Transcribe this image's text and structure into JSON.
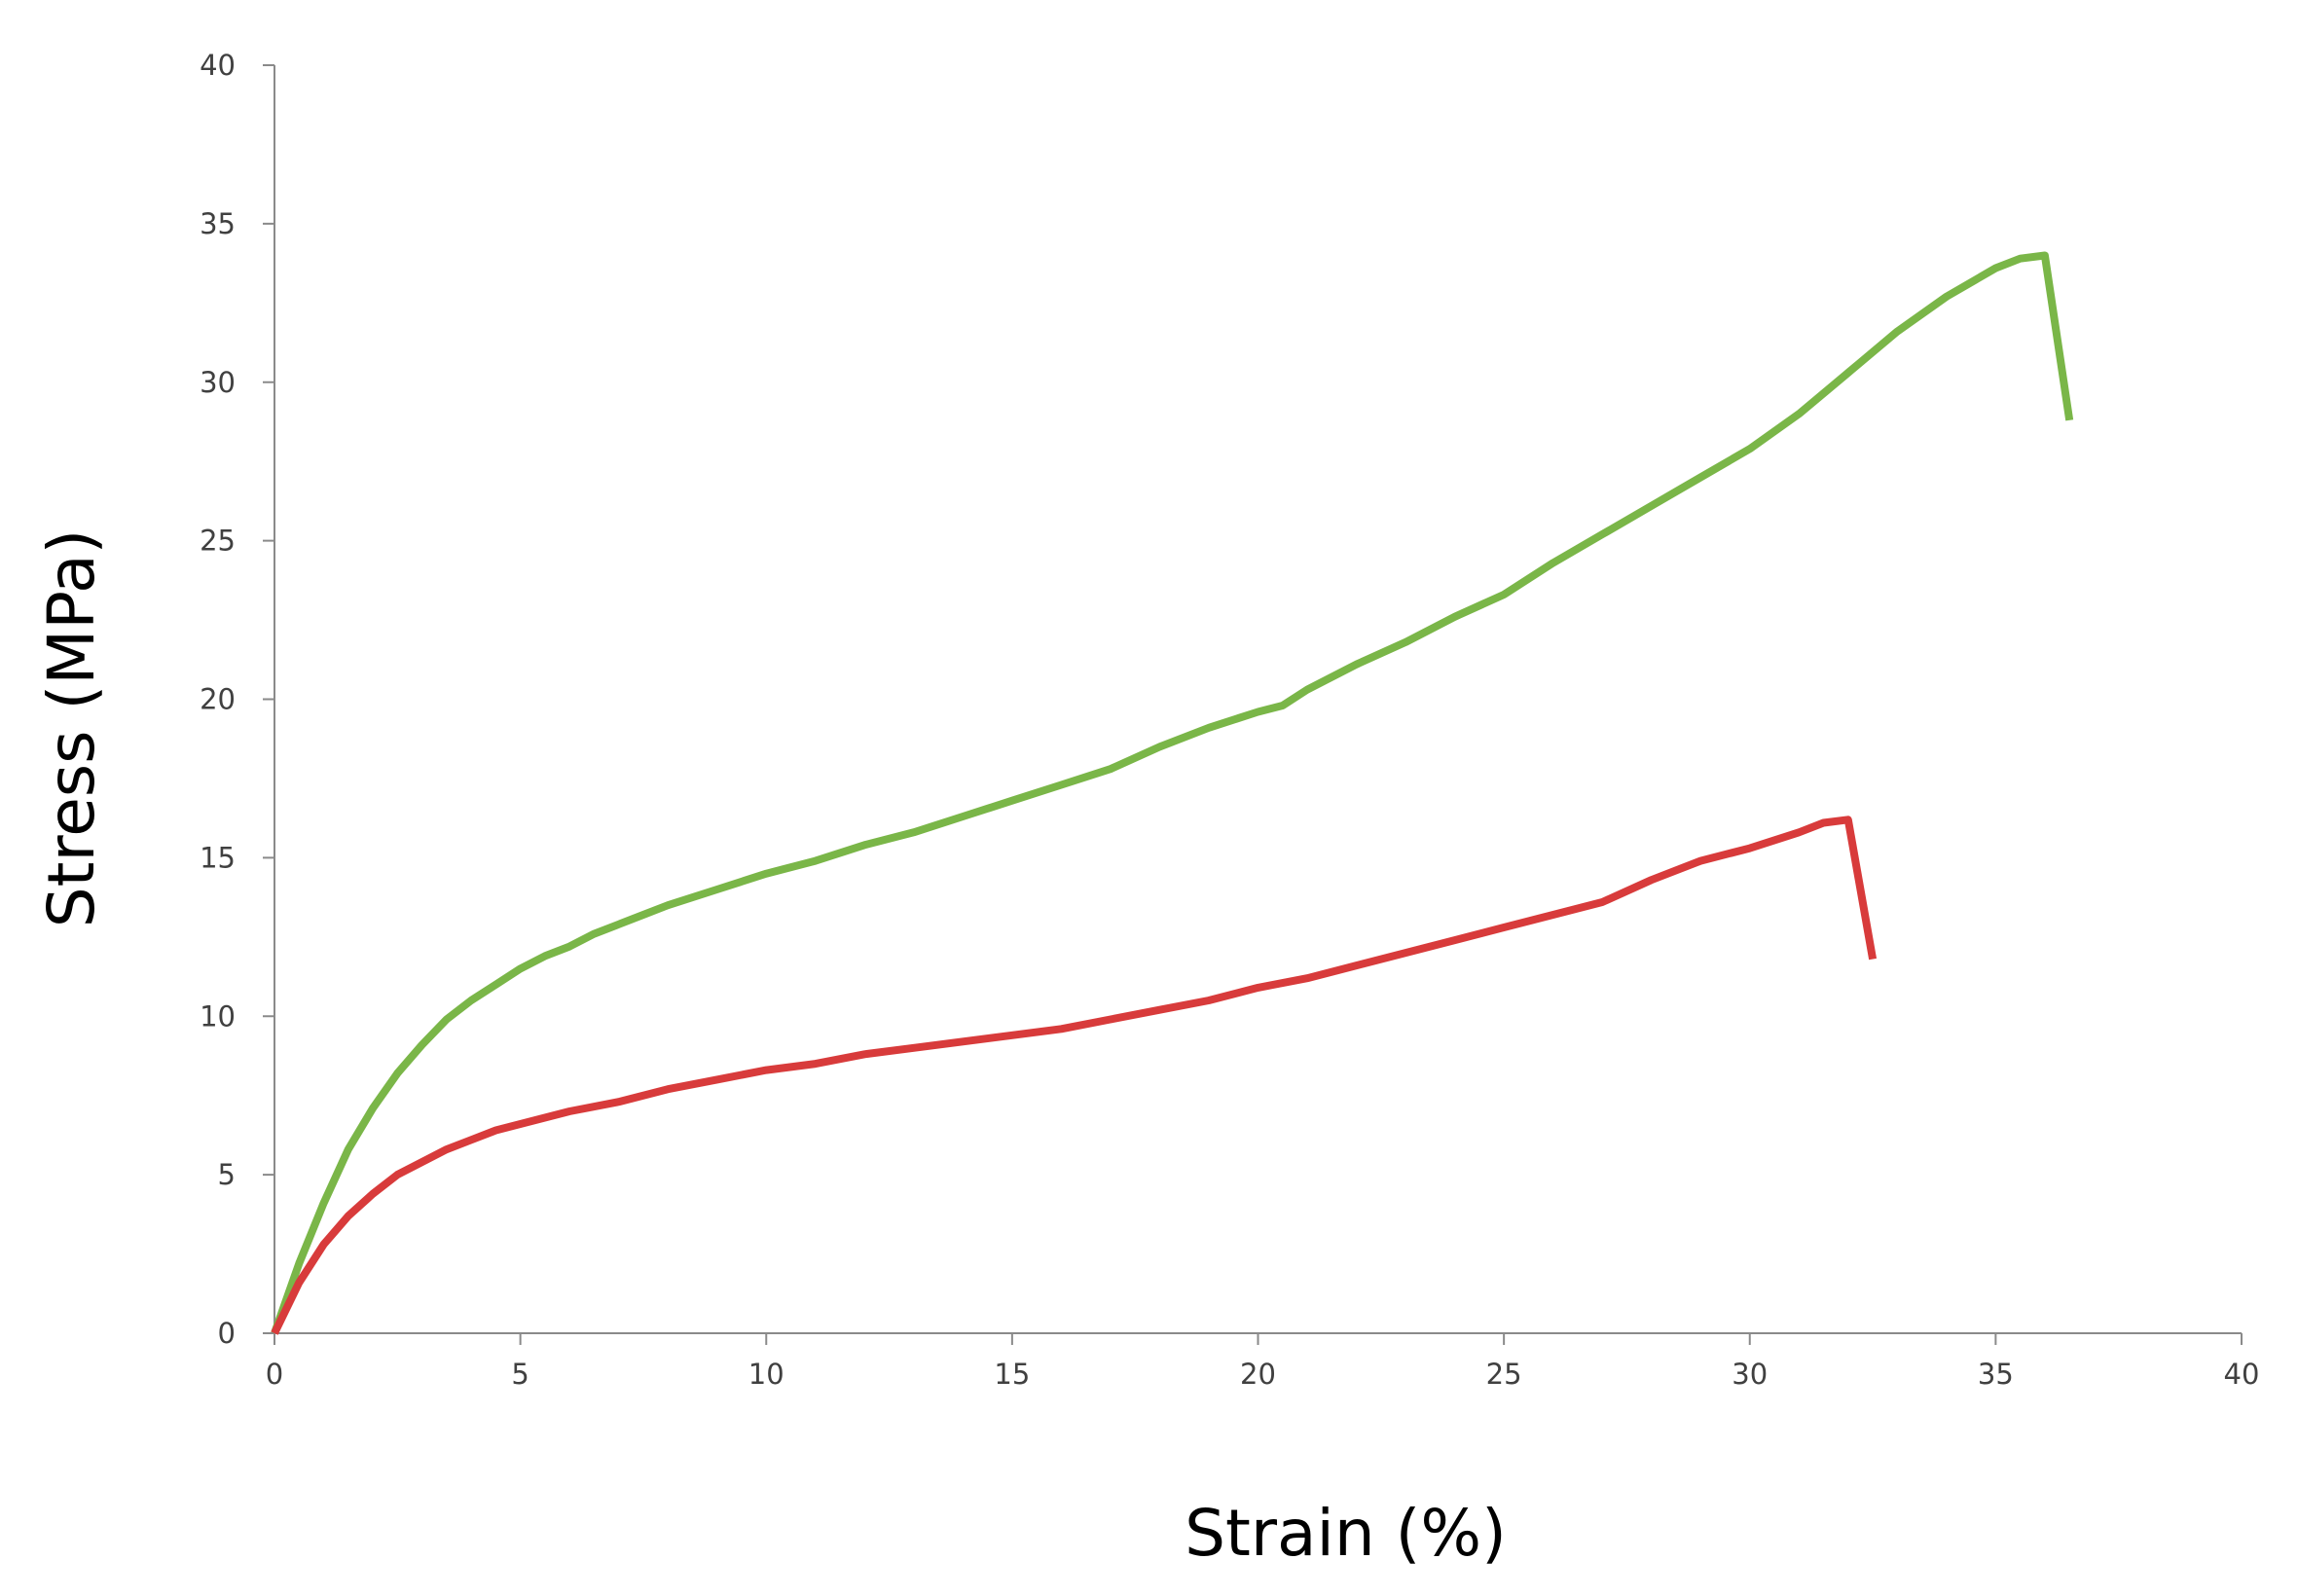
{
  "chart_data": {
    "type": "line",
    "title": "",
    "xlabel": "Strain (%)",
    "ylabel": "Stress (MPa)",
    "xlim": [
      0,
      40
    ],
    "ylim": [
      0,
      40
    ],
    "x_ticks": [
      "0",
      "5",
      "10",
      "15",
      "20",
      "25",
      "30",
      "35",
      "40"
    ],
    "y_ticks": [
      "0",
      "5",
      "10",
      "15",
      "20",
      "25",
      "30",
      "35",
      "40"
    ],
    "grid": false,
    "legend": "none",
    "series": [
      {
        "color": "#7ab648",
        "points": [
          [
            0,
            0
          ],
          [
            0.5,
            2.2
          ],
          [
            1,
            4.1
          ],
          [
            1.5,
            5.8
          ],
          [
            2,
            7.1
          ],
          [
            2.5,
            8.2
          ],
          [
            3,
            9.1
          ],
          [
            3.5,
            9.9
          ],
          [
            4,
            10.5
          ],
          [
            4.5,
            11.0
          ],
          [
            5,
            11.5
          ],
          [
            5.5,
            11.9
          ],
          [
            6,
            12.2
          ],
          [
            6.5,
            12.6
          ],
          [
            7,
            12.9
          ],
          [
            7.5,
            13.2
          ],
          [
            8,
            13.5
          ],
          [
            9,
            14.0
          ],
          [
            10,
            14.5
          ],
          [
            11,
            14.9
          ],
          [
            12,
            15.4
          ],
          [
            13,
            15.8
          ],
          [
            14,
            16.3
          ],
          [
            15,
            16.8
          ],
          [
            16,
            17.3
          ],
          [
            17,
            17.8
          ],
          [
            18,
            18.5
          ],
          [
            19,
            19.1
          ],
          [
            20,
            19.6
          ],
          [
            20.5,
            19.8
          ],
          [
            21,
            20.3
          ],
          [
            22,
            21.1
          ],
          [
            23,
            21.8
          ],
          [
            24,
            22.6
          ],
          [
            25,
            23.3
          ],
          [
            26,
            24.3
          ],
          [
            27,
            25.2
          ],
          [
            28,
            26.1
          ],
          [
            29,
            27.0
          ],
          [
            30,
            27.9
          ],
          [
            31,
            29.0
          ],
          [
            32,
            30.3
          ],
          [
            33,
            31.6
          ],
          [
            34,
            32.7
          ],
          [
            35,
            33.6
          ],
          [
            35.5,
            33.9
          ],
          [
            36,
            34.0
          ],
          [
            36.5,
            28.8
          ]
        ]
      },
      {
        "color": "#d83b3b",
        "points": [
          [
            0,
            0
          ],
          [
            0.5,
            1.6
          ],
          [
            1,
            2.8
          ],
          [
            1.5,
            3.7
          ],
          [
            2,
            4.4
          ],
          [
            2.5,
            5.0
          ],
          [
            3,
            5.4
          ],
          [
            3.5,
            5.8
          ],
          [
            4,
            6.1
          ],
          [
            4.5,
            6.4
          ],
          [
            5,
            6.6
          ],
          [
            6,
            7.0
          ],
          [
            7,
            7.3
          ],
          [
            8,
            7.7
          ],
          [
            9,
            8.0
          ],
          [
            10,
            8.3
          ],
          [
            11,
            8.5
          ],
          [
            12,
            8.8
          ],
          [
            13,
            9.0
          ],
          [
            14,
            9.2
          ],
          [
            15,
            9.4
          ],
          [
            16,
            9.6
          ],
          [
            17,
            9.9
          ],
          [
            18,
            10.2
          ],
          [
            19,
            10.5
          ],
          [
            20,
            10.9
          ],
          [
            21,
            11.2
          ],
          [
            22,
            11.6
          ],
          [
            23,
            12.0
          ],
          [
            24,
            12.4
          ],
          [
            25,
            12.8
          ],
          [
            26,
            13.2
          ],
          [
            27,
            13.6
          ],
          [
            28,
            14.3
          ],
          [
            29,
            14.9
          ],
          [
            30,
            15.3
          ],
          [
            31,
            15.8
          ],
          [
            31.5,
            16.1
          ],
          [
            32,
            16.2
          ],
          [
            32.5,
            11.8
          ]
        ]
      }
    ]
  }
}
